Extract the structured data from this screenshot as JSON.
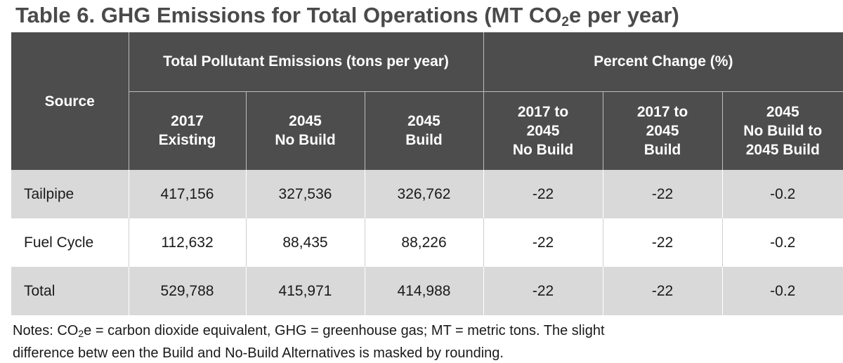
{
  "title": {
    "prefix": "Table 6. GHG Emissions  for Total Operations (MT CO",
    "sub": "2",
    "suffix": "e per year)"
  },
  "table": {
    "source_header": "Source",
    "group_emissions": "Total Pollutant Emissions (tons per year)",
    "group_percent": "Percent Change (%)",
    "columns": [
      [
        "2017",
        "Existing"
      ],
      [
        "2045",
        "No Build"
      ],
      [
        "2045",
        "Build"
      ],
      [
        "2017 to",
        "2045",
        "No Build"
      ],
      [
        "2017 to",
        "2045",
        "Build"
      ],
      [
        "2045",
        "No Build to",
        "2045 Build"
      ]
    ],
    "rows": [
      {
        "source": "Tailpipe",
        "values": [
          "417,156",
          "327,536",
          "326,762",
          "-22",
          "-22",
          "-0.2"
        ]
      },
      {
        "source": "Fuel Cycle",
        "values": [
          "112,632",
          "88,435",
          "88,226",
          "-22",
          "-22",
          "-0.2"
        ]
      },
      {
        "source": "Total",
        "values": [
          "529,788",
          "415,971",
          "414,988",
          "-22",
          "-22",
          "-0.2"
        ]
      }
    ]
  },
  "notes": {
    "prefix": "Notes: CO",
    "sub": "2",
    "line1_rest": "e = carbon dioxide equivalent,  GHG = greenhouse gas; MT = metric tons. The slight",
    "line2": "difference betw een the Build and No-Build  Alternatives is masked  by rounding."
  }
}
